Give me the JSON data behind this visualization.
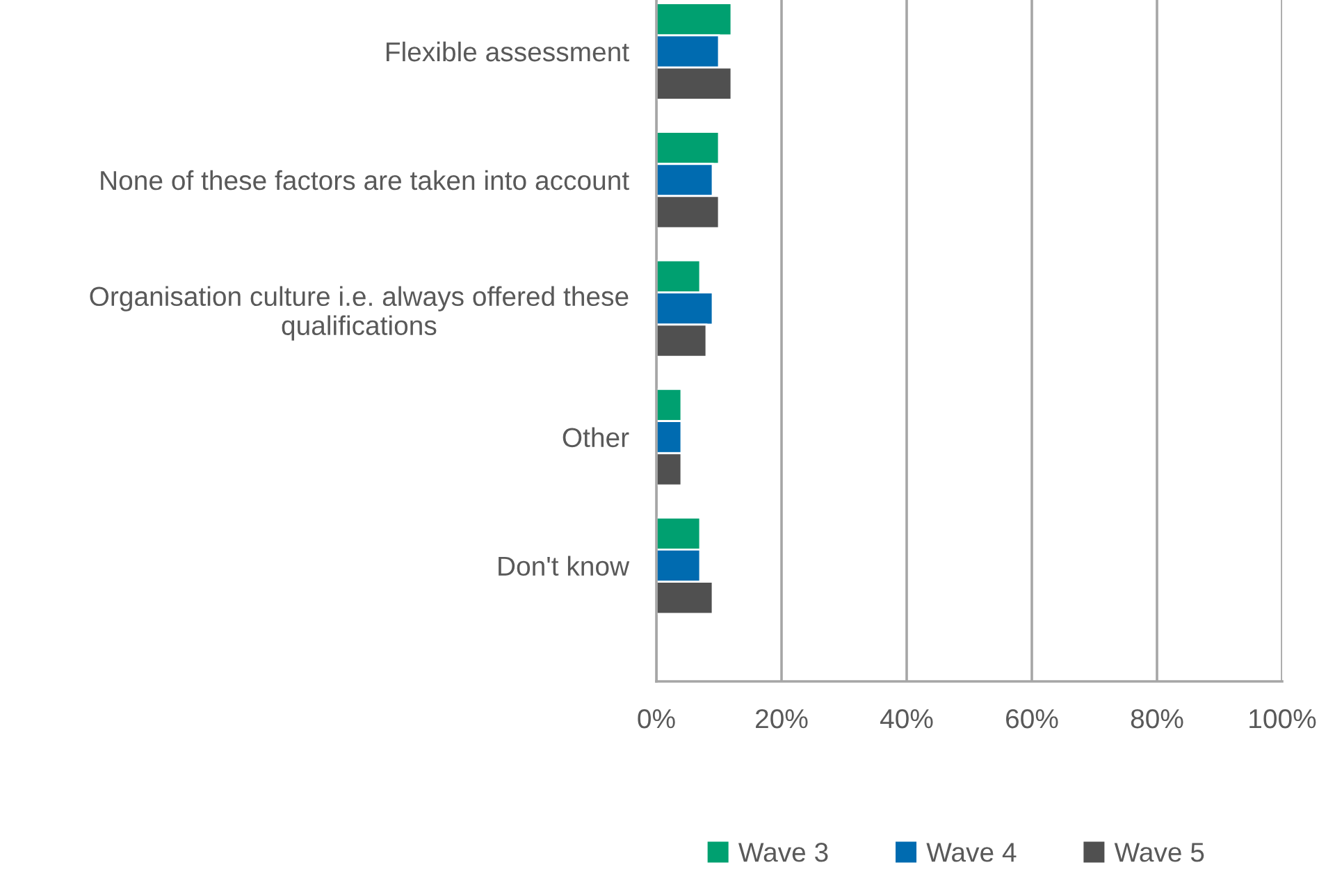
{
  "chart_data": {
    "type": "bar",
    "orientation": "horizontal",
    "categories": [
      "Flexible assessment",
      "None of these factors are taken into account",
      "Organisation culture i.e. always offered these qualifications",
      "Other",
      "Don't know"
    ],
    "series": [
      {
        "name": "Wave 3",
        "color": "#00a070",
        "values": [
          12,
          10,
          7,
          4,
          7
        ]
      },
      {
        "name": "Wave 4",
        "color": "#006bb0",
        "values": [
          10,
          9,
          9,
          4,
          7
        ]
      },
      {
        "name": "Wave 5",
        "color": "#505050",
        "values": [
          12,
          10,
          8,
          4,
          9
        ]
      }
    ],
    "xlim": [
      0,
      100
    ],
    "xticks": [
      {
        "value": 0,
        "label": "0%"
      },
      {
        "value": 20,
        "label": "20%"
      },
      {
        "value": 40,
        "label": "40%"
      },
      {
        "value": 60,
        "label": "60%"
      },
      {
        "value": 80,
        "label": "80%"
      },
      {
        "value": 100,
        "label": "100%"
      }
    ],
    "grid": "x",
    "legend": "bottom"
  }
}
